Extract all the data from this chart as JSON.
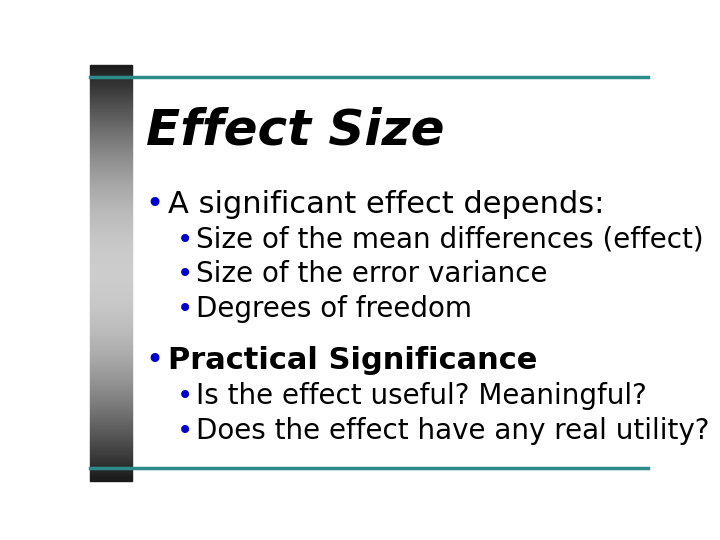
{
  "title": "Effect Size",
  "title_style": "italic",
  "title_color": "#000000",
  "title_fontsize": 36,
  "background_color": "#ffffff",
  "accent_line_color": "#2E8B8B",
  "bullet_color": "#0000CC",
  "text_color": "#000000",
  "bullet1_text": "A significant effect depends:",
  "bullet1_fontsize": 22,
  "sub_bullets": [
    "Size of the mean differences (effect)",
    "Size of the error variance",
    "Degrees of freedom"
  ],
  "sub_fontsize": 20,
  "bullet2_text": "Practical Significance",
  "bullet2_fontsize": 22,
  "sub_bullets2": [
    "Is the effect useful? Meaningful?",
    "Does the effect have any real utility?"
  ],
  "sub_fontsize2": 20
}
